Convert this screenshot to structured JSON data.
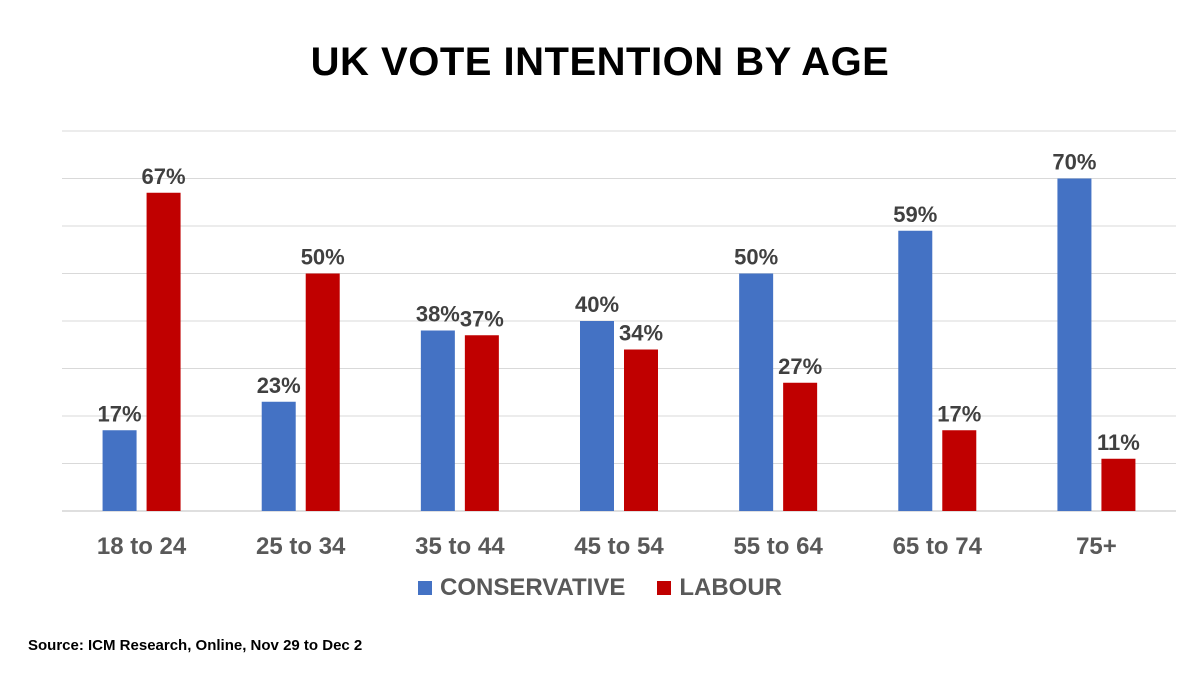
{
  "chart_data": {
    "type": "bar",
    "title": "UK VOTE INTENTION BY AGE",
    "categories": [
      "18 to 24",
      "25 to 34",
      "35 to 44",
      "45 to 54",
      "55 to 64",
      "65 to 74",
      "75+"
    ],
    "series": [
      {
        "name": "CONSERVATIVE",
        "color": "#4472C4",
        "values": [
          17,
          23,
          38,
          40,
          50,
          59,
          70
        ],
        "labels": [
          "17%",
          "23%",
          "38%",
          "40%",
          "50%",
          "59%",
          "70%"
        ]
      },
      {
        "name": "LABOUR",
        "color": "#C00000",
        "values": [
          67,
          50,
          37,
          34,
          27,
          17,
          11
        ],
        "labels": [
          "67%",
          "50%",
          "37%",
          "34%",
          "27%",
          "17%",
          "11%"
        ]
      }
    ],
    "ylim": [
      0,
      80
    ],
    "gridlines": true,
    "legend_position": "bottom",
    "xlabel": "",
    "ylabel": ""
  },
  "source": "Source: ICM Research, Online,  Nov 29 to Dec 2"
}
